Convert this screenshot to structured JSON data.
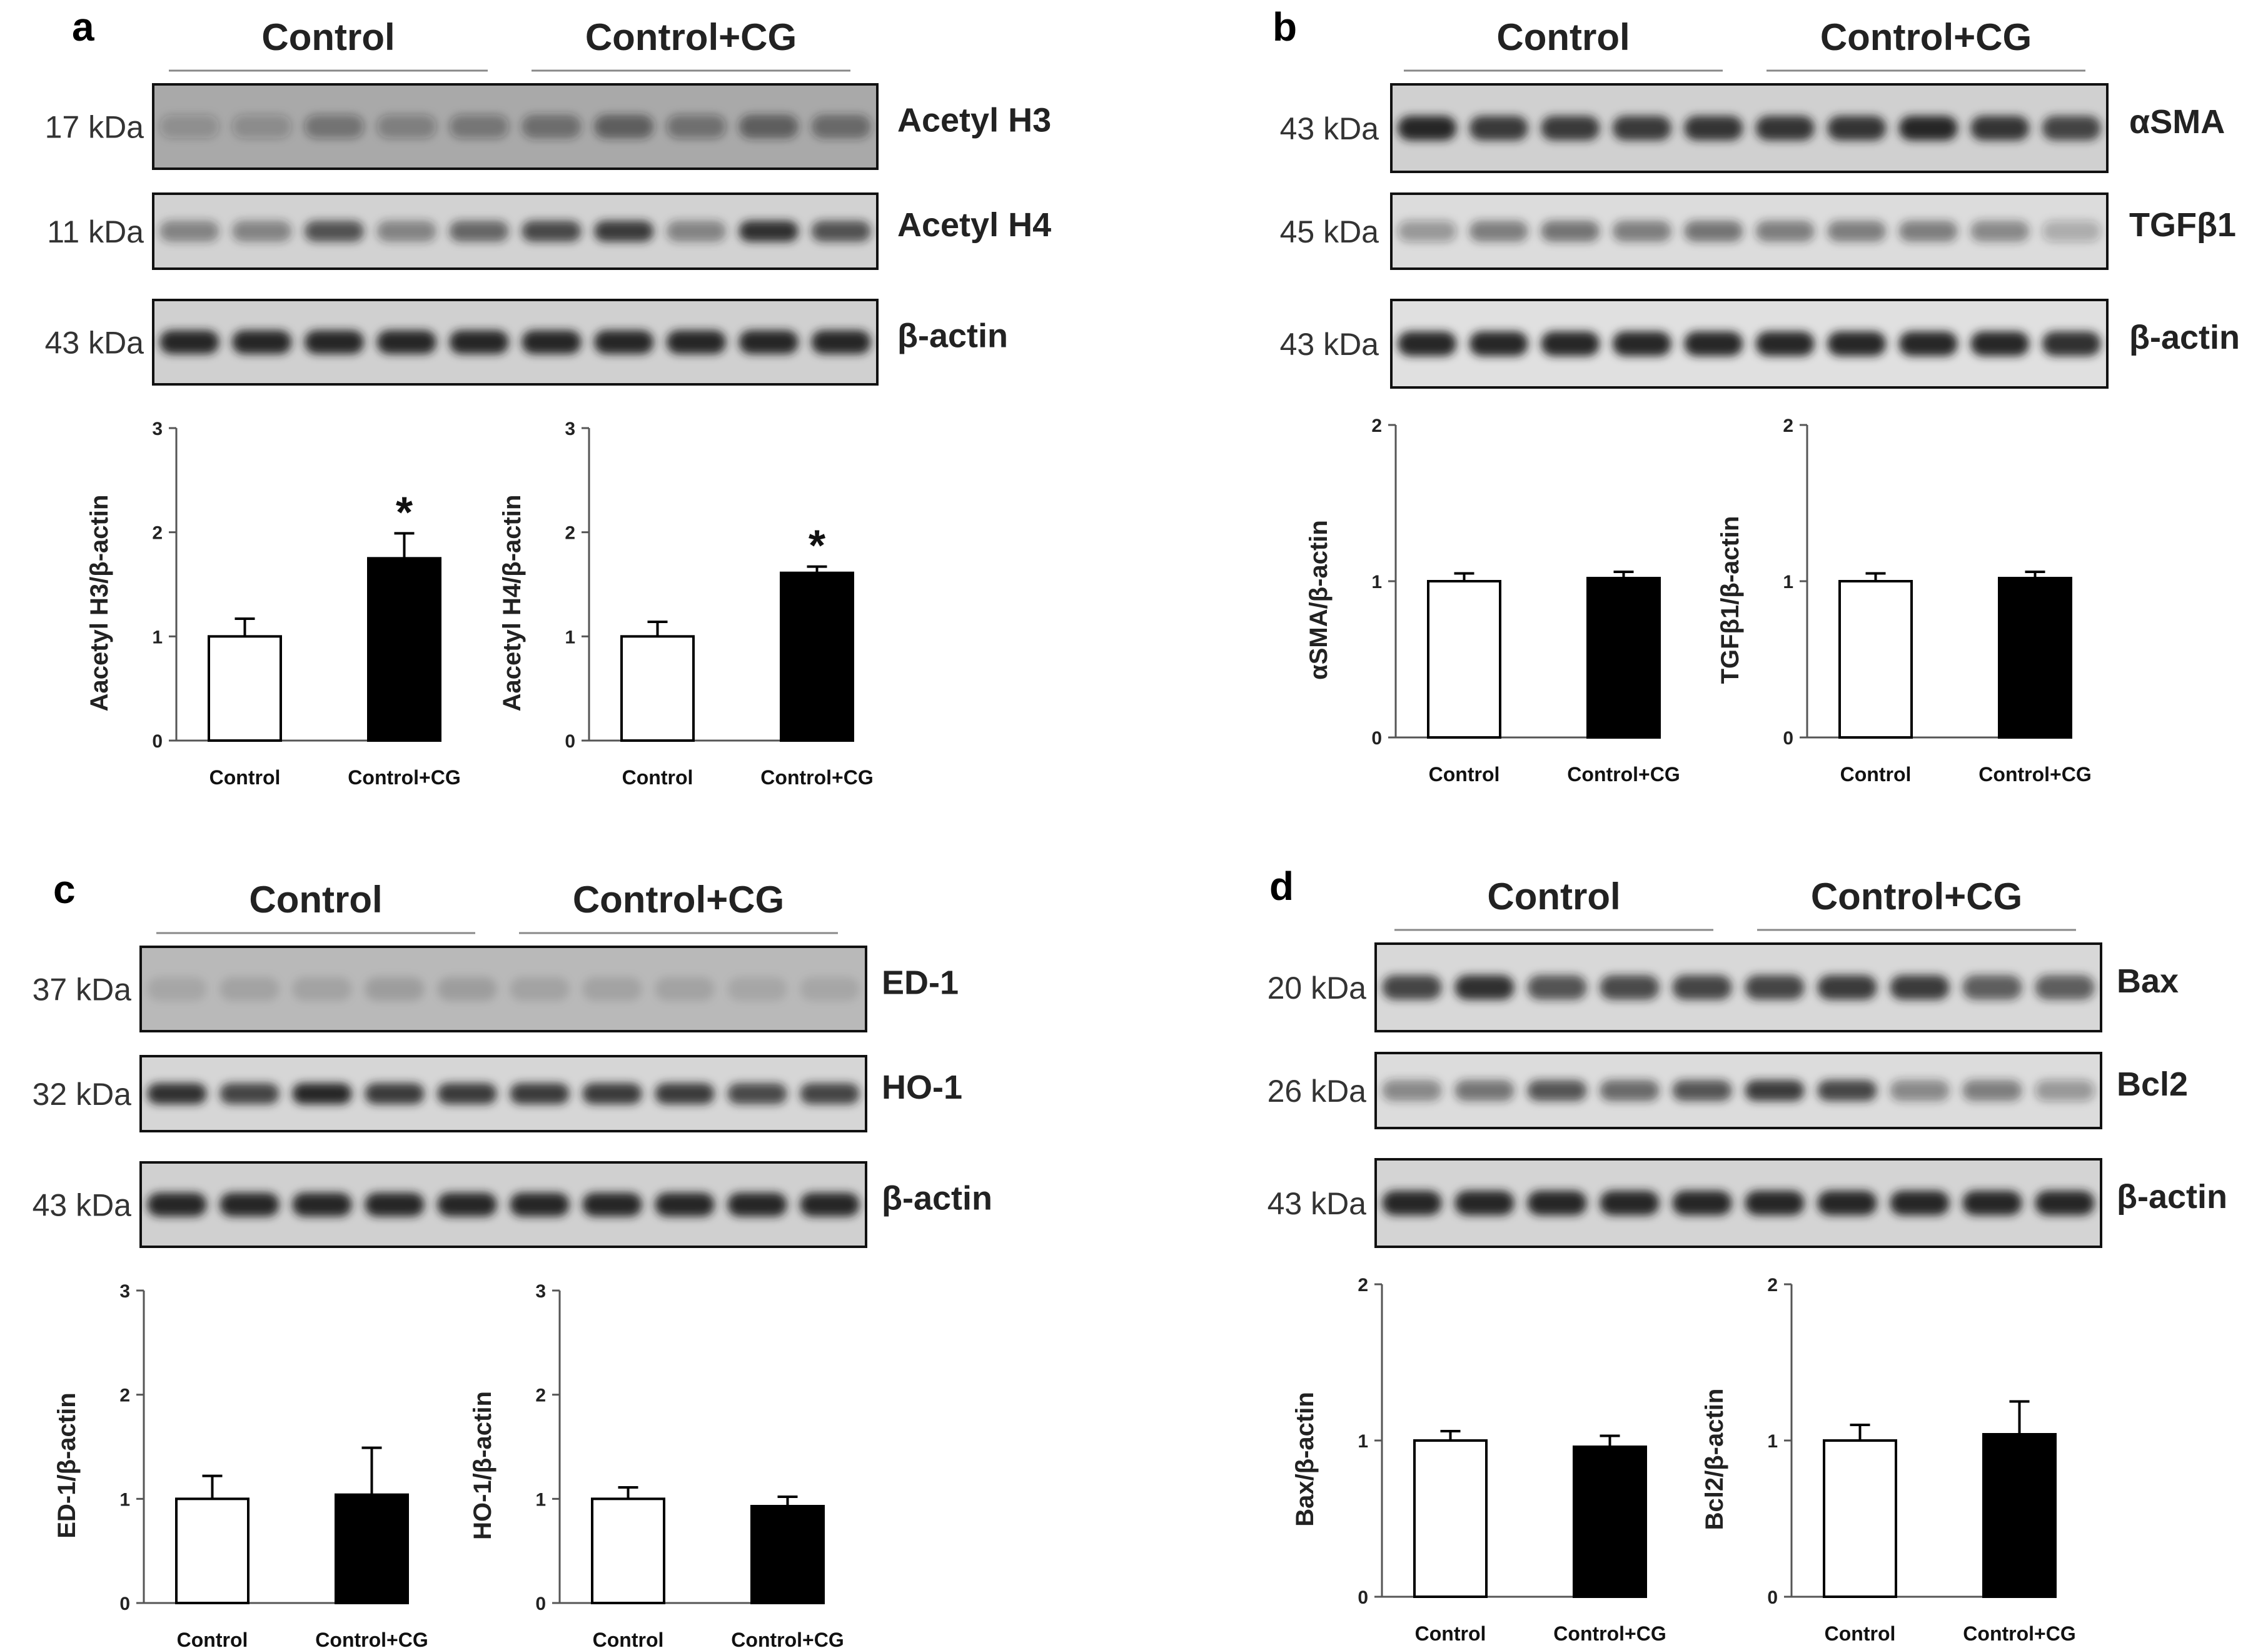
{
  "colors": {
    "control_fill": "#ffffff",
    "treated_fill": "#000000",
    "axis": "#555555",
    "blot_bg": "#cfcfcf",
    "band": "#1e1e1e"
  },
  "panels": [
    {
      "letter": "a",
      "groups": [
        "Control",
        "Control+CG"
      ],
      "blots": [
        {
          "kda": "17 kDa",
          "protein": "Acetyl H3",
          "intensity": [
            0.2,
            0.22,
            0.38,
            0.3,
            0.36,
            0.45,
            0.55,
            0.4,
            0.55,
            0.48
          ],
          "bg": "#a9a9a9"
        },
        {
          "kda": "11 kDa",
          "protein": "Acetyl H4",
          "intensity": [
            0.45,
            0.45,
            0.7,
            0.45,
            0.6,
            0.75,
            0.85,
            0.45,
            0.9,
            0.7
          ],
          "bg": "#d2d2d2"
        },
        {
          "kda": "43 kDa",
          "protein": "β-actin",
          "intensity": [
            0.95,
            0.95,
            0.95,
            0.95,
            0.95,
            0.95,
            0.95,
            0.95,
            0.95,
            0.95
          ],
          "bg": "#d0d0d0"
        }
      ]
    },
    {
      "letter": "b",
      "groups": [
        "Control",
        "Control+CG"
      ],
      "blots": [
        {
          "kda": "43 kDa",
          "protein": "αSMA",
          "intensity": [
            0.95,
            0.85,
            0.85,
            0.85,
            0.88,
            0.88,
            0.88,
            0.95,
            0.88,
            0.8
          ],
          "bg": "#d0d0d0"
        },
        {
          "kda": "45 kDa",
          "protein": "TGFβ1",
          "intensity": [
            0.35,
            0.5,
            0.55,
            0.5,
            0.55,
            0.5,
            0.5,
            0.5,
            0.45,
            0.25
          ],
          "bg": "#dcdcdc"
        },
        {
          "kda": "43 kDa",
          "protein": "β-actin",
          "intensity": [
            0.95,
            0.95,
            0.95,
            0.95,
            0.95,
            0.95,
            0.95,
            0.95,
            0.95,
            0.9
          ],
          "bg": "#e0e0e0"
        }
      ]
    },
    {
      "letter": "c",
      "groups": [
        "Control",
        "Control+CG"
      ],
      "blots": [
        {
          "kda": "37 kDa",
          "protein": "ED-1",
          "intensity": [
            0.1,
            0.12,
            0.12,
            0.15,
            0.15,
            0.12,
            0.12,
            0.12,
            0.1,
            0.1
          ],
          "bg": "#b9b9b9"
        },
        {
          "kda": "32 kDa",
          "protein": "HO-1",
          "intensity": [
            0.9,
            0.8,
            0.95,
            0.85,
            0.85,
            0.85,
            0.85,
            0.85,
            0.75,
            0.8
          ],
          "bg": "#d6d6d6"
        },
        {
          "kda": "43 kDa",
          "protein": "β-actin",
          "intensity": [
            0.95,
            0.95,
            0.95,
            0.95,
            0.95,
            0.95,
            0.95,
            0.95,
            0.95,
            0.95
          ],
          "bg": "#d0d0d0"
        }
      ]
    },
    {
      "letter": "d",
      "groups": [
        "Control",
        "Control+CG"
      ],
      "blots": [
        {
          "kda": "20 kDa",
          "protein": "Bax",
          "intensity": [
            0.8,
            0.9,
            0.7,
            0.75,
            0.8,
            0.8,
            0.85,
            0.85,
            0.65,
            0.65
          ],
          "bg": "#d8d8d8"
        },
        {
          "kda": "26 kDa",
          "protein": "Bcl2",
          "intensity": [
            0.45,
            0.55,
            0.7,
            0.6,
            0.7,
            0.85,
            0.8,
            0.45,
            0.5,
            0.35
          ],
          "bg": "#dcdcdc"
        },
        {
          "kda": "43 kDa",
          "protein": "β-actin",
          "intensity": [
            0.95,
            0.95,
            0.95,
            0.95,
            0.95,
            0.95,
            0.95,
            0.95,
            0.95,
            0.95
          ],
          "bg": "#d4d4d4"
        }
      ]
    }
  ],
  "chart_data": [
    {
      "type": "bar",
      "panel": "a",
      "categories": [
        "Control",
        "Control+CG"
      ],
      "values": [
        1.0,
        1.75
      ],
      "errors": [
        0.17,
        0.24
      ],
      "ylabel": "Aacetyl H3/β-actin",
      "ylim": [
        0,
        3
      ],
      "yticks": [
        "0",
        "1",
        "2",
        "3"
      ],
      "significance": [
        "",
        "*"
      ]
    },
    {
      "type": "bar",
      "panel": "a",
      "categories": [
        "Control",
        "Control+CG"
      ],
      "values": [
        1.0,
        1.61
      ],
      "errors": [
        0.14,
        0.06
      ],
      "ylabel": "Aacetyl H4/β-actin",
      "ylim": [
        0,
        3
      ],
      "yticks": [
        "0",
        "1",
        "2",
        "3"
      ],
      "significance": [
        "",
        "*"
      ]
    },
    {
      "type": "bar",
      "panel": "b",
      "categories": [
        "Control",
        "Control+CG"
      ],
      "values": [
        1.0,
        1.02
      ],
      "errors": [
        0.05,
        0.04
      ],
      "ylabel": "αSMA/β-actin",
      "ylim": [
        0,
        2
      ],
      "yticks": [
        "0",
        "1",
        "2"
      ],
      "significance": [
        "",
        ""
      ]
    },
    {
      "type": "bar",
      "panel": "b",
      "categories": [
        "Control",
        "Control+CG"
      ],
      "values": [
        1.0,
        1.02
      ],
      "errors": [
        0.05,
        0.04
      ],
      "ylabel": "TGFβ1/β-actin",
      "ylim": [
        0,
        2
      ],
      "yticks": [
        "0",
        "1",
        "2"
      ],
      "significance": [
        "",
        ""
      ]
    },
    {
      "type": "bar",
      "panel": "c",
      "categories": [
        "Control",
        "Control+CG"
      ],
      "values": [
        1.0,
        1.04
      ],
      "errors": [
        0.22,
        0.45
      ],
      "ylabel": "ED-1/β-actin",
      "ylim": [
        0,
        3
      ],
      "yticks": [
        "0",
        "1",
        "2",
        "3"
      ],
      "significance": [
        "",
        ""
      ]
    },
    {
      "type": "bar",
      "panel": "c",
      "categories": [
        "Control",
        "Control+CG"
      ],
      "values": [
        1.0,
        0.93
      ],
      "errors": [
        0.11,
        0.09
      ],
      "ylabel": "HO-1/β-actin",
      "ylim": [
        0,
        3
      ],
      "yticks": [
        "0",
        "1",
        "2",
        "3"
      ],
      "significance": [
        "",
        ""
      ]
    },
    {
      "type": "bar",
      "panel": "d",
      "categories": [
        "Control",
        "Control+CG"
      ],
      "values": [
        1.0,
        0.96
      ],
      "errors": [
        0.06,
        0.07
      ],
      "ylabel": "Bax/β-actin",
      "ylim": [
        0,
        2
      ],
      "yticks": [
        "0",
        "1",
        "2"
      ],
      "significance": [
        "",
        ""
      ]
    },
    {
      "type": "bar",
      "panel": "d",
      "categories": [
        "Control",
        "Control+CG"
      ],
      "values": [
        1.0,
        1.04
      ],
      "errors": [
        0.1,
        0.21
      ],
      "ylabel": "Bcl2/β-actin",
      "ylim": [
        0,
        2
      ],
      "yticks": [
        "0",
        "1",
        "2"
      ],
      "significance": [
        "",
        ""
      ]
    }
  ]
}
